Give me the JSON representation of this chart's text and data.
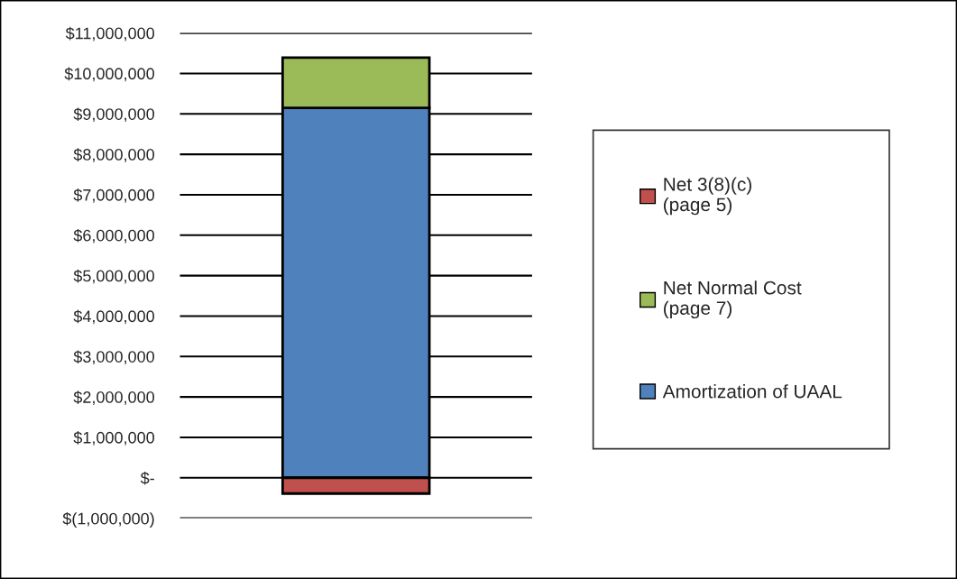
{
  "chart_data": {
    "type": "bar",
    "stacked": true,
    "categories": [
      null
    ],
    "tick_labels": "y",
    "series": [
      {
        "name": "Amortization of UAAL",
        "color": "#4f81bd",
        "values": [
          9150000
        ]
      },
      {
        "name": "Net Normal Cost\n(page 7)",
        "color": "#9bbb59",
        "values": [
          1240000
        ]
      },
      {
        "name": "Net 3(8)(c)\n(page 5)",
        "color": "#c0504d",
        "values": [
          -390000
        ]
      }
    ],
    "ylim": [
      -1000000,
      11000000
    ],
    "yticks": [
      {
        "value": -1000000,
        "label": "$(1,000,000)"
      },
      {
        "value": 0,
        "label": "$-"
      },
      {
        "value": 1000000,
        "label": "$1,000,000"
      },
      {
        "value": 2000000,
        "label": "$2,000,000"
      },
      {
        "value": 3000000,
        "label": "$3,000,000"
      },
      {
        "value": 4000000,
        "label": "$4,000,000"
      },
      {
        "value": 5000000,
        "label": "$5,000,000"
      },
      {
        "value": 6000000,
        "label": "$6,000,000"
      },
      {
        "value": 7000000,
        "label": "$7,000,000"
      },
      {
        "value": 8000000,
        "label": "$8,000,000"
      },
      {
        "value": 9000000,
        "label": "$9,000,000"
      },
      {
        "value": 10000000,
        "label": "$10,000,000"
      },
      {
        "value": 11000000,
        "label": "$11,000,000"
      }
    ],
    "grid": "y",
    "legend": "right"
  }
}
